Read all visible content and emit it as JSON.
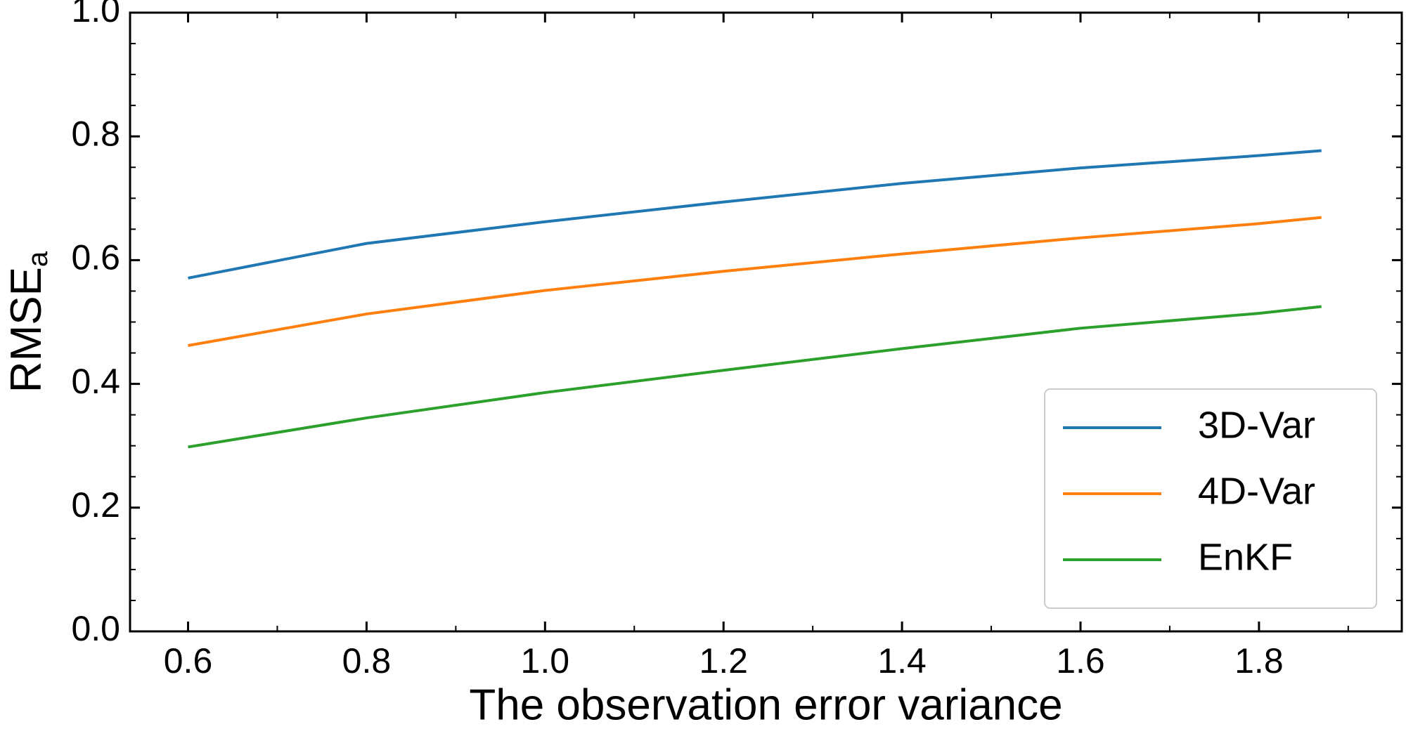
{
  "chart_data": {
    "type": "line",
    "xlabel": "The observation error variance",
    "ylabel": "RMSE",
    "ylabel_subscript": "a",
    "x": [
      0.6,
      0.8,
      1.0,
      1.2,
      1.4,
      1.6,
      1.8,
      1.87
    ],
    "series": [
      {
        "name": "3D-Var",
        "color": "#1f77b4",
        "values": [
          0.571,
          0.627,
          0.662,
          0.694,
          0.724,
          0.749,
          0.769,
          0.777
        ]
      },
      {
        "name": "4D-Var",
        "color": "#ff7f0e",
        "values": [
          0.462,
          0.513,
          0.551,
          0.582,
          0.61,
          0.636,
          0.659,
          0.669
        ]
      },
      {
        "name": "EnKF",
        "color": "#2ca02c",
        "values": [
          0.298,
          0.345,
          0.386,
          0.422,
          0.457,
          0.49,
          0.514,
          0.525
        ]
      }
    ],
    "xlim": [
      0.535,
      1.96
    ],
    "ylim": [
      0,
      1
    ],
    "xticks": [
      0.6,
      0.8,
      {
        "value": 1,
        "label": "1.0"
      },
      1.2,
      1.4,
      1.6,
      1.8
    ],
    "yticks": [
      {
        "value": 0,
        "label": "0.0"
      },
      0.2,
      0.4,
      0.6,
      0.8,
      {
        "value": 1,
        "label": "1.0"
      }
    ],
    "legend": "lower right",
    "grid": false
  }
}
